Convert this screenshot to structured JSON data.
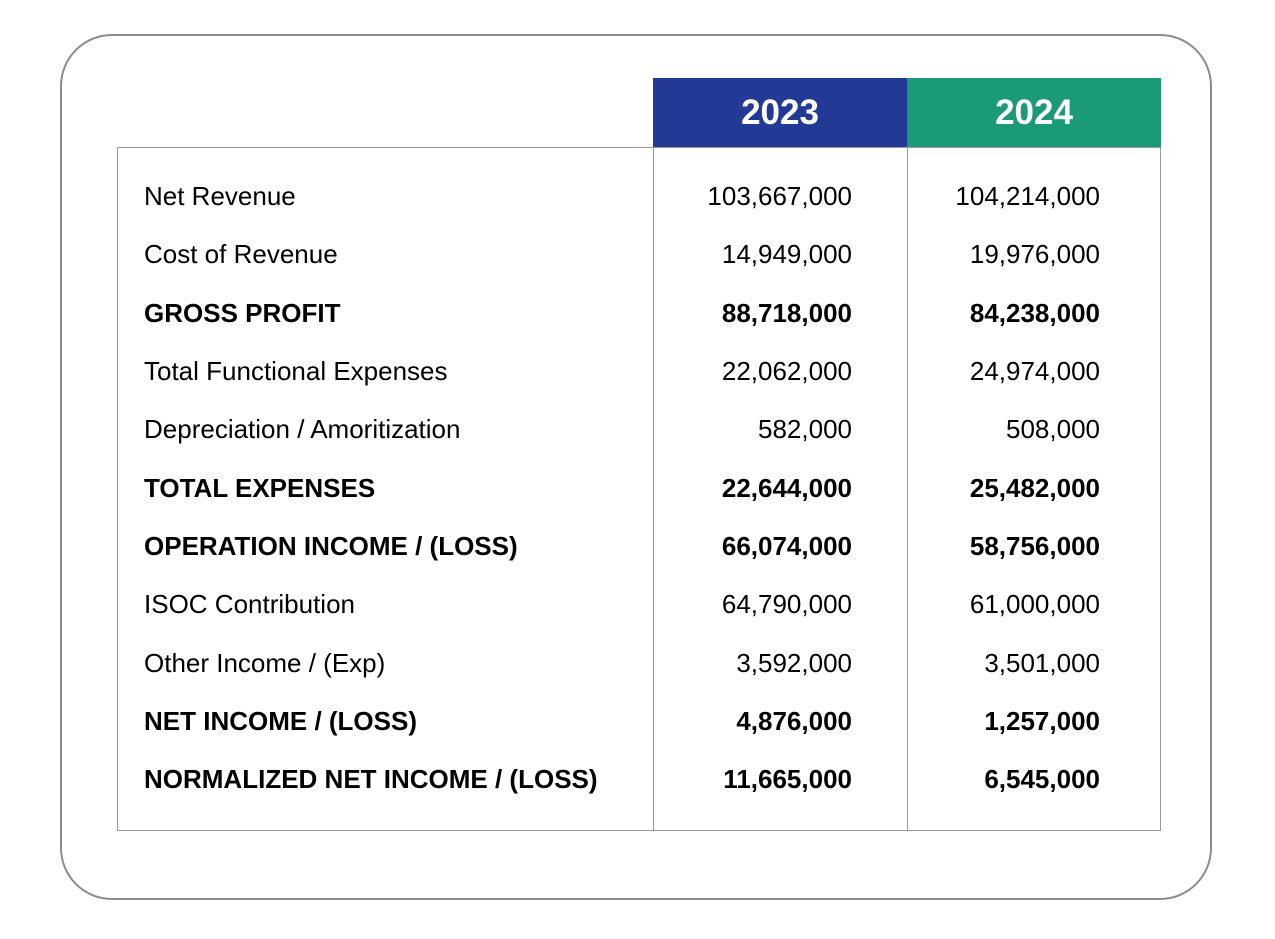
{
  "header": {
    "years": [
      "2023",
      "2024"
    ],
    "colors": {
      "2023": "#223a96",
      "2024": "#1a9a78"
    }
  },
  "rows": [
    {
      "label": "Net Revenue",
      "v2023": "103,667,000",
      "v2024": "104,214,000",
      "bold": false
    },
    {
      "label": "Cost of Revenue",
      "v2023": "14,949,000",
      "v2024": "19,976,000",
      "bold": false
    },
    {
      "label": "GROSS PROFIT",
      "v2023": "88,718,000",
      "v2024": "84,238,000",
      "bold": true
    },
    {
      "label": "Total Functional Expenses",
      "v2023": "22,062,000",
      "v2024": "24,974,000",
      "bold": false
    },
    {
      "label": "Depreciation / Amoritization",
      "v2023": "582,000",
      "v2024": "508,000",
      "bold": false
    },
    {
      "label": "TOTAL EXPENSES",
      "v2023": "22,644,000",
      "v2024": "25,482,000",
      "bold": true
    },
    {
      "label": "OPERATION INCOME / (LOSS)",
      "v2023": "66,074,000",
      "v2024": "58,756,000",
      "bold": true
    },
    {
      "label": "ISOC Contribution",
      "v2023": "64,790,000",
      "v2024": "61,000,000",
      "bold": false
    },
    {
      "label": "Other Income / (Exp)",
      "v2023": "3,592,000",
      "v2024": "3,501,000",
      "bold": false
    },
    {
      "label": "NET INCOME / (LOSS)",
      "v2023": "4,876,000",
      "v2024": "1,257,000",
      "bold": true
    },
    {
      "label": "NORMALIZED NET INCOME / (LOSS)",
      "v2023": "11,665,000",
      "v2024": "6,545,000",
      "bold": true
    }
  ]
}
